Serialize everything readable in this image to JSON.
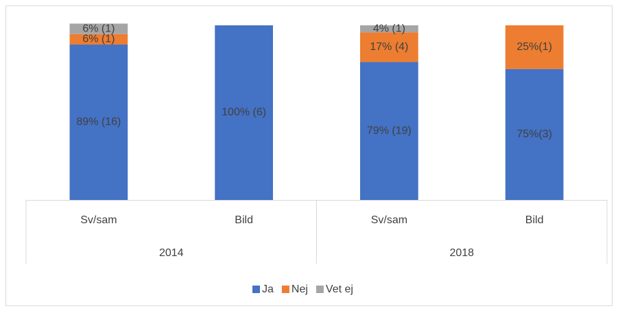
{
  "chart_data": {
    "type": "stacked-bar",
    "categories": [
      "Sv/sam",
      "Bild",
      "Sv/sam",
      "Bild"
    ],
    "groups": [
      "2014",
      "2018"
    ],
    "ylim": [
      0,
      100
    ],
    "legend": "bottom",
    "series": [
      {
        "name": "Ja",
        "color": "#4472c4",
        "values": [
          89,
          100,
          79,
          75
        ],
        "value_labels": [
          "89% (16)",
          "100% (6)",
          "79% (19)",
          "75%(3)"
        ]
      },
      {
        "name": "Nej",
        "color": "#ed7d31",
        "values": [
          6,
          null,
          17,
          25
        ],
        "value_labels": [
          "6% (1)",
          null,
          "17% (4)",
          "25%(1)"
        ]
      },
      {
        "name": "Vet ej",
        "color": "#a5a5a5",
        "values": [
          6,
          null,
          4,
          null
        ],
        "value_labels": [
          "6% (1)",
          null,
          "4% (1)",
          null
        ]
      }
    ]
  }
}
